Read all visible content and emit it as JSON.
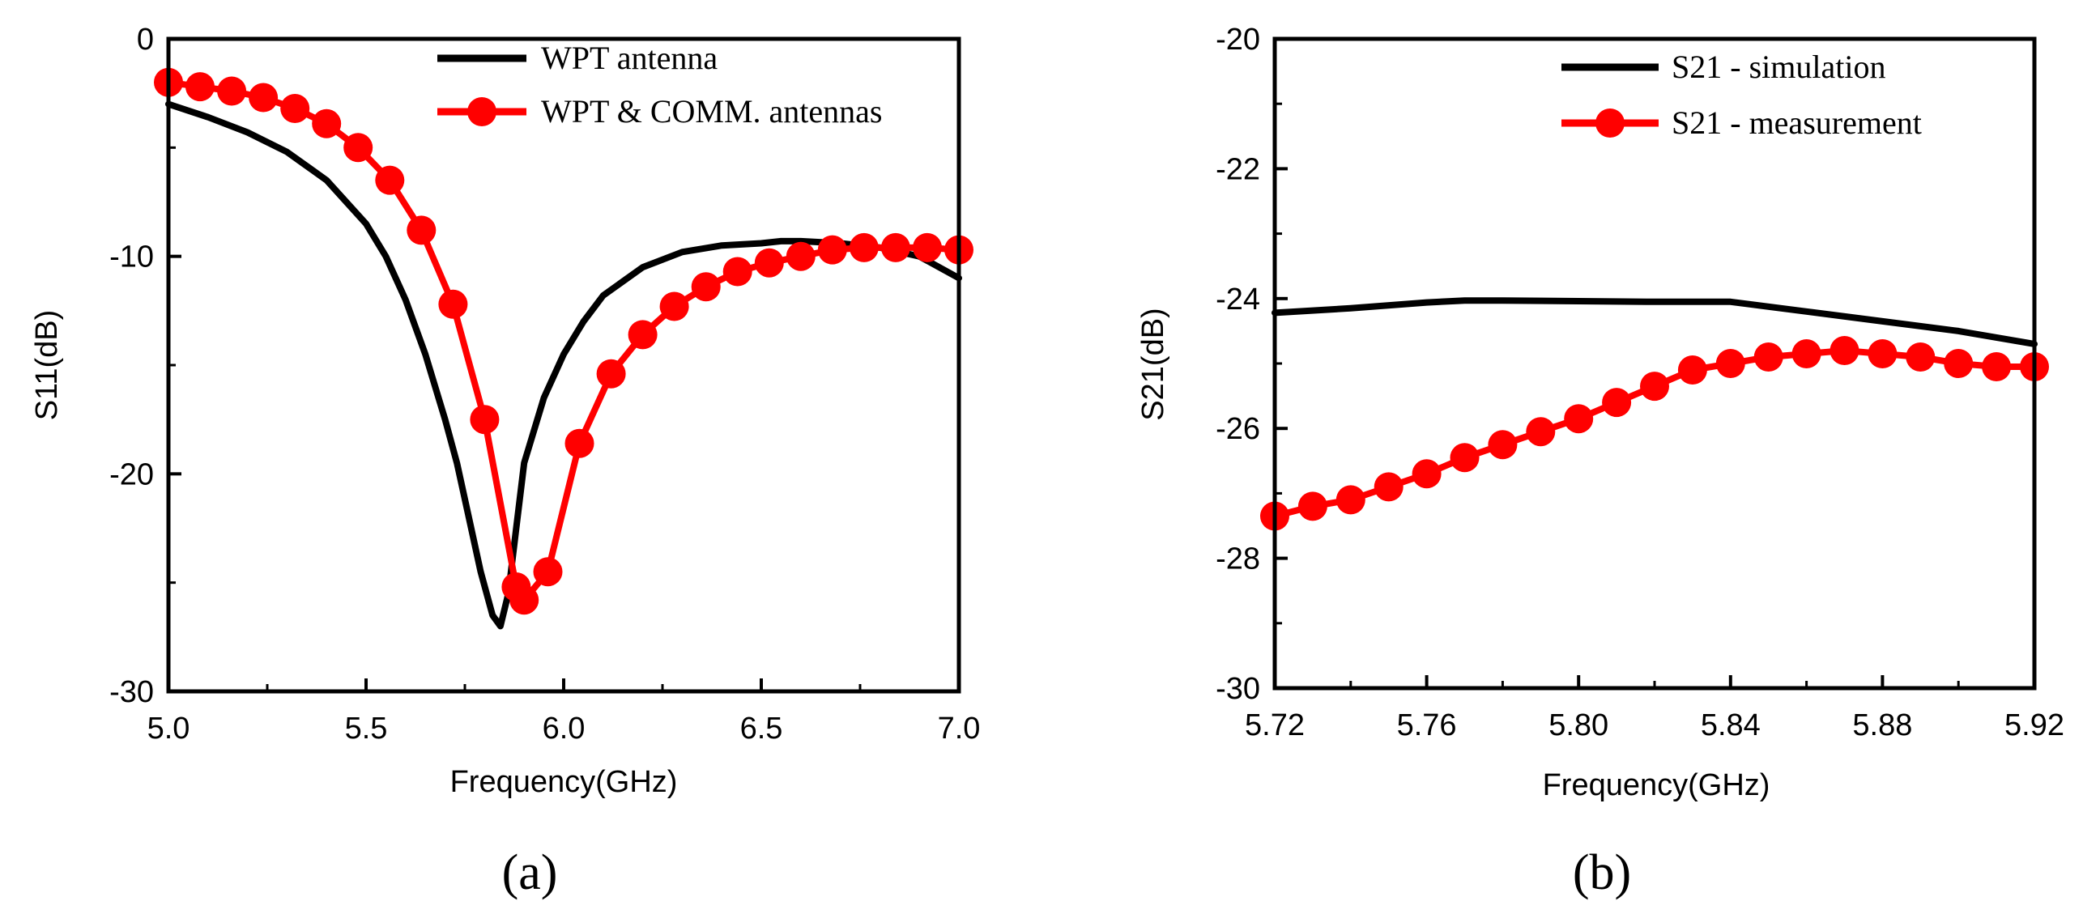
{
  "chart_data": [
    {
      "type": "line",
      "panel_label": "(a)",
      "xlabel": "Frequency(GHz)",
      "ylabel": "S11(dB)",
      "xlim": [
        5.0,
        7.0
      ],
      "ylim": [
        -30,
        0
      ],
      "x_ticks": [
        "5.0",
        "5.5",
        "6.0",
        "6.5",
        "7.0"
      ],
      "y_ticks": [
        "0",
        "-10",
        "-20",
        "-30"
      ],
      "grid": false,
      "legend_position": "top-right",
      "series": [
        {
          "name": "WPT antenna",
          "color": "#000000",
          "marker": "none",
          "x": [
            5.0,
            5.1,
            5.2,
            5.3,
            5.4,
            5.5,
            5.55,
            5.6,
            5.65,
            5.7,
            5.73,
            5.76,
            5.79,
            5.82,
            5.84,
            5.86,
            5.88,
            5.9,
            5.95,
            6.0,
            6.05,
            6.1,
            6.2,
            6.3,
            6.4,
            6.5,
            6.55,
            6.6,
            6.7,
            6.8,
            6.9,
            7.0
          ],
          "y": [
            -3.0,
            -3.6,
            -4.3,
            -5.2,
            -6.5,
            -8.5,
            -10.0,
            -12.0,
            -14.5,
            -17.5,
            -19.5,
            -22.0,
            -24.5,
            -26.5,
            -27.0,
            -25.5,
            -22.5,
            -19.5,
            -16.5,
            -14.5,
            -13.0,
            -11.8,
            -10.5,
            -9.8,
            -9.5,
            -9.4,
            -9.3,
            -9.3,
            -9.4,
            -9.6,
            -10.0,
            -11.0
          ]
        },
        {
          "name": "WPT & COMM. antennas",
          "color": "#ff0000",
          "marker": "circle",
          "x": [
            5.0,
            5.08,
            5.16,
            5.24,
            5.32,
            5.4,
            5.48,
            5.56,
            5.64,
            5.72,
            5.8,
            5.88,
            5.9,
            5.96,
            6.04,
            6.12,
            6.2,
            6.28,
            6.36,
            6.44,
            6.52,
            6.6,
            6.68,
            6.76,
            6.84,
            6.92,
            7.0
          ],
          "y": [
            -2.0,
            -2.2,
            -2.4,
            -2.7,
            -3.2,
            -3.9,
            -5.0,
            -6.5,
            -8.8,
            -12.2,
            -17.5,
            -25.2,
            -25.8,
            -24.5,
            -18.6,
            -15.4,
            -13.6,
            -12.3,
            -11.4,
            -10.7,
            -10.3,
            -10.0,
            -9.7,
            -9.6,
            -9.6,
            -9.6,
            -9.7
          ]
        }
      ]
    },
    {
      "type": "line",
      "panel_label": "(b)",
      "xlabel": "Frequency(GHz)",
      "ylabel": "S21(dB)",
      "xlim": [
        5.72,
        5.92
      ],
      "ylim": [
        -30,
        -20
      ],
      "x_ticks": [
        "5.72",
        "5.76",
        "5.80",
        "5.84",
        "5.88",
        "5.92"
      ],
      "y_ticks": [
        "-20",
        "-22",
        "-24",
        "-26",
        "-28",
        "-30"
      ],
      "grid": false,
      "legend_position": "top-right",
      "series": [
        {
          "name": "S21 - simulation",
          "color": "#000000",
          "marker": "none",
          "x": [
            5.72,
            5.74,
            5.76,
            5.77,
            5.78,
            5.8,
            5.82,
            5.84,
            5.86,
            5.88,
            5.9,
            5.92
          ],
          "y": [
            -24.22,
            -24.15,
            -24.06,
            -24.03,
            -24.03,
            -24.04,
            -24.05,
            -24.05,
            -24.2,
            -24.35,
            -24.5,
            -24.7
          ]
        },
        {
          "name": "S21 - measurement",
          "color": "#ff0000",
          "marker": "circle",
          "x": [
            5.72,
            5.73,
            5.74,
            5.75,
            5.76,
            5.77,
            5.78,
            5.79,
            5.8,
            5.81,
            5.82,
            5.83,
            5.84,
            5.85,
            5.86,
            5.87,
            5.88,
            5.89,
            5.9,
            5.91,
            5.92
          ],
          "y": [
            -27.35,
            -27.2,
            -27.1,
            -26.9,
            -26.7,
            -26.45,
            -26.25,
            -26.05,
            -25.85,
            -25.6,
            -25.35,
            -25.1,
            -25.0,
            -24.9,
            -24.85,
            -24.8,
            -24.85,
            -24.9,
            -25.0,
            -25.05,
            -25.05
          ]
        }
      ]
    }
  ]
}
